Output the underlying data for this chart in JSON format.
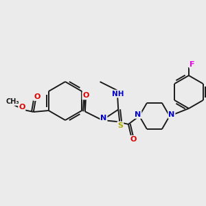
{
  "background_color": "#ebebeb",
  "bond_color": "#1a1a1a",
  "atom_colors": {
    "O": "#dd0000",
    "N": "#0000cc",
    "S": "#aaaa00",
    "F": "#ee00ee",
    "C": "#1a1a1a"
  },
  "figsize": [
    3.0,
    3.0
  ],
  "dpi": 100
}
